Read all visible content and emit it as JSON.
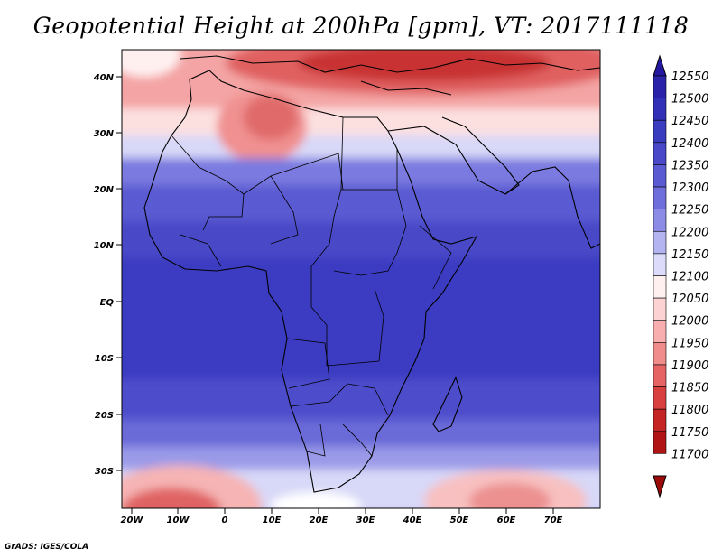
{
  "title": "Geopotential Height at 200hPa [gpm], VT: 2017111118",
  "credit": "GrADS: IGES/COLA",
  "lat_labels": [
    "40N",
    "30N",
    "20N",
    "10N",
    "EQ",
    "10S",
    "20S",
    "30S"
  ],
  "lon_labels": [
    "20W",
    "10W",
    "0",
    "10E",
    "20E",
    "30E",
    "40E",
    "50E",
    "60E",
    "70E"
  ],
  "colorbar": {
    "labels": [
      "12550",
      "12500",
      "12450",
      "12400",
      "12350",
      "12300",
      "12250",
      "12200",
      "12150",
      "12100",
      "12050",
      "12000",
      "11950",
      "11900",
      "11850",
      "11800",
      "11750",
      "11700"
    ],
    "colors": [
      "#2418a0",
      "#2a22a8",
      "#3230b6",
      "#3a3cc0",
      "#4848c8",
      "#5a5ad2",
      "#6e6edc",
      "#8c8ce6",
      "#b4b4f0",
      "#dcdcfa",
      "#fff0f0",
      "#fcd2d2",
      "#f8aeae",
      "#f08c8c",
      "#e66464",
      "#d84040",
      "#c42424",
      "#b01414",
      "#9c0a0a"
    ]
  }
}
